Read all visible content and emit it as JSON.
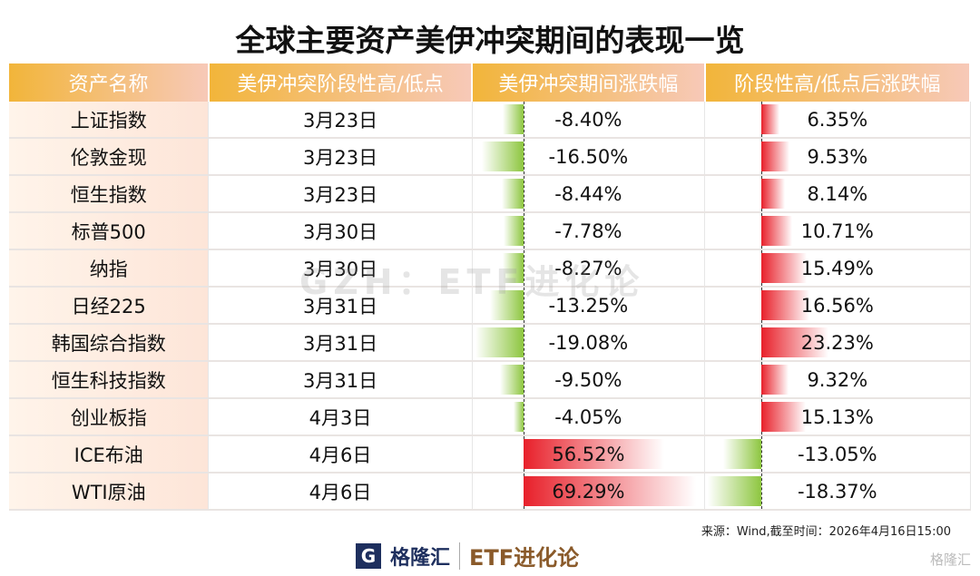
{
  "title": "全球主要资产美伊冲突期间的表现一览",
  "headers": [
    "资产名称",
    "美伊冲突阶段性高/低点",
    "美伊冲突期间涨跌幅",
    "阶段性高/低点后涨跌幅"
  ],
  "rows": [
    {
      "name": "上证指数",
      "date": "3月23日",
      "chg1": -8.4,
      "chg1_text": "-8.40%",
      "chg2": 6.35,
      "chg2_text": "6.35%"
    },
    {
      "name": "伦敦金现",
      "date": "3月23日",
      "chg1": -16.5,
      "chg1_text": "-16.50%",
      "chg2": 9.53,
      "chg2_text": "9.53%"
    },
    {
      "name": "恒生指数",
      "date": "3月23日",
      "chg1": -8.44,
      "chg1_text": "-8.44%",
      "chg2": 8.14,
      "chg2_text": "8.14%"
    },
    {
      "name": "标普500",
      "date": "3月30日",
      "chg1": -7.78,
      "chg1_text": "-7.78%",
      "chg2": 10.71,
      "chg2_text": "10.71%"
    },
    {
      "name": "纳指",
      "date": "3月30日",
      "chg1": -8.27,
      "chg1_text": "-8.27%",
      "chg2": 15.49,
      "chg2_text": "15.49%"
    },
    {
      "name": "日经225",
      "date": "3月31日",
      "chg1": -13.25,
      "chg1_text": "-13.25%",
      "chg2": 16.56,
      "chg2_text": "16.56%"
    },
    {
      "name": "韩国综合指数",
      "date": "3月31日",
      "chg1": -19.08,
      "chg1_text": "-19.08%",
      "chg2": 23.23,
      "chg2_text": "23.23%"
    },
    {
      "name": "恒生科技指数",
      "date": "3月31日",
      "chg1": -9.5,
      "chg1_text": "-9.50%",
      "chg2": 9.32,
      "chg2_text": "9.32%"
    },
    {
      "name": "创业板指",
      "date": "4月3日",
      "chg1": -4.05,
      "chg1_text": "-4.05%",
      "chg2": 15.13,
      "chg2_text": "15.13%"
    },
    {
      "name": "ICE布油",
      "date": "4月6日",
      "chg1": 56.52,
      "chg1_text": "56.52%",
      "chg2": -13.05,
      "chg2_text": "-13.05%"
    },
    {
      "name": "WTI原油",
      "date": "4月6日",
      "chg1": 69.29,
      "chg1_text": "69.29%",
      "chg2": -18.37,
      "chg2_text": "-18.37%"
    }
  ],
  "source": "来源：Wind,截至时间：2026年4月16日15:00",
  "logo": {
    "mark": "G",
    "name": "格隆汇",
    "brand": "ETF进化论"
  },
  "watermark": "格隆汇",
  "center_watermark": "GZH：ETF进化论",
  "colors": {
    "positive": "#e8202a",
    "negative": "#8dc63f",
    "header": "#f2b53a"
  }
}
